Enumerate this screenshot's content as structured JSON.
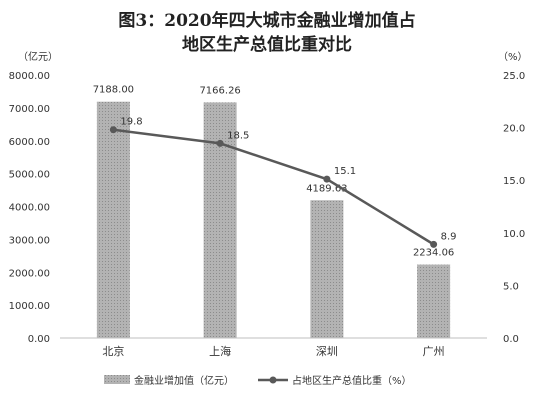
{
  "chart_data": {
    "type": "bar",
    "title_line1": "图3：2020年四大城市金融业增加值占",
    "title_line2": "地区生产总值比重对比",
    "categories": [
      "北京",
      "上海",
      "深圳",
      "广州"
    ],
    "left_axis": {
      "unit_label": "（亿元）",
      "ylim": [
        0,
        8000
      ],
      "ticks": [
        "0.00",
        "1000.00",
        "2000.00",
        "3000.00",
        "4000.00",
        "5000.00",
        "6000.00",
        "7000.00",
        "8000.00"
      ]
    },
    "right_axis": {
      "unit_label": "（%）",
      "ylim": [
        0,
        25
      ],
      "ticks": [
        "0.0",
        "5.0",
        "10.0",
        "15.0",
        "20.0",
        "25.0"
      ]
    },
    "series": [
      {
        "name": "金融业增加值（亿元）",
        "type": "bar",
        "axis": "left",
        "color": "#a6a6a6",
        "values": [
          7188.0,
          7166.26,
          4189.63,
          2234.06
        ],
        "labels": [
          "7188.00",
          "7166.26",
          "4189.63",
          "2234.06"
        ]
      },
      {
        "name": "占地区生产总值比重（%）",
        "type": "line",
        "axis": "right",
        "color": "#595959",
        "values": [
          19.8,
          18.5,
          15.1,
          8.9
        ],
        "labels": [
          "19.8",
          "18.5",
          "15.1",
          "8.9"
        ]
      }
    ],
    "grid": false,
    "legend_position": "bottom"
  }
}
